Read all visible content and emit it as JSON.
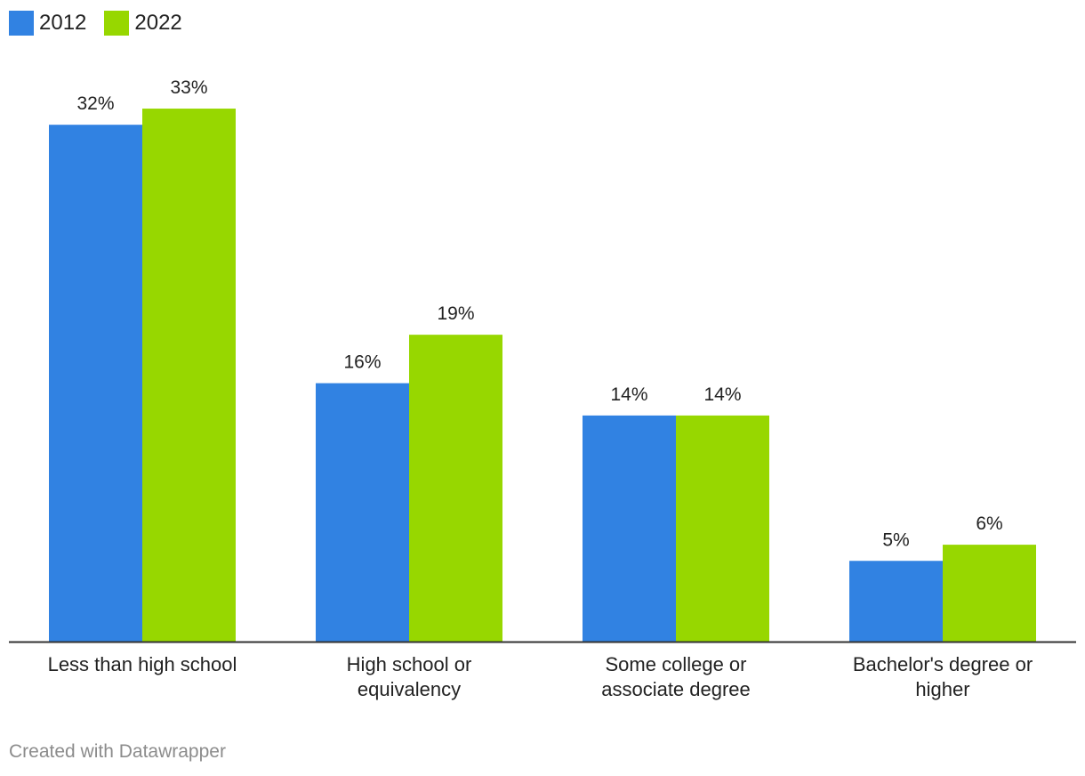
{
  "chart_data": {
    "type": "bar",
    "title": "",
    "xlabel": "",
    "ylabel": "",
    "ylim": [
      0,
      35
    ],
    "grid": false,
    "legend_position": "top-left",
    "categories": [
      [
        "Less than high school"
      ],
      [
        "High school or",
        "equivalency"
      ],
      [
        "Some college or",
        "associate degree"
      ],
      [
        "Bachelor's degree or",
        "higher"
      ]
    ],
    "series": [
      {
        "name": "2012",
        "color": "#3182e2",
        "values": [
          32,
          16,
          14,
          5
        ],
        "labels": [
          "32%",
          "16%",
          "14%",
          "5%"
        ]
      },
      {
        "name": "2022",
        "color": "#97d700",
        "values": [
          33,
          19,
          14,
          6
        ],
        "labels": [
          "33%",
          "19%",
          "14%",
          "6%"
        ]
      }
    ]
  },
  "legend": {
    "items": [
      {
        "label": "2012",
        "color": "#3182e2"
      },
      {
        "label": "2022",
        "color": "#97d700"
      }
    ]
  },
  "footer": {
    "credit": "Created with Datawrapper"
  }
}
